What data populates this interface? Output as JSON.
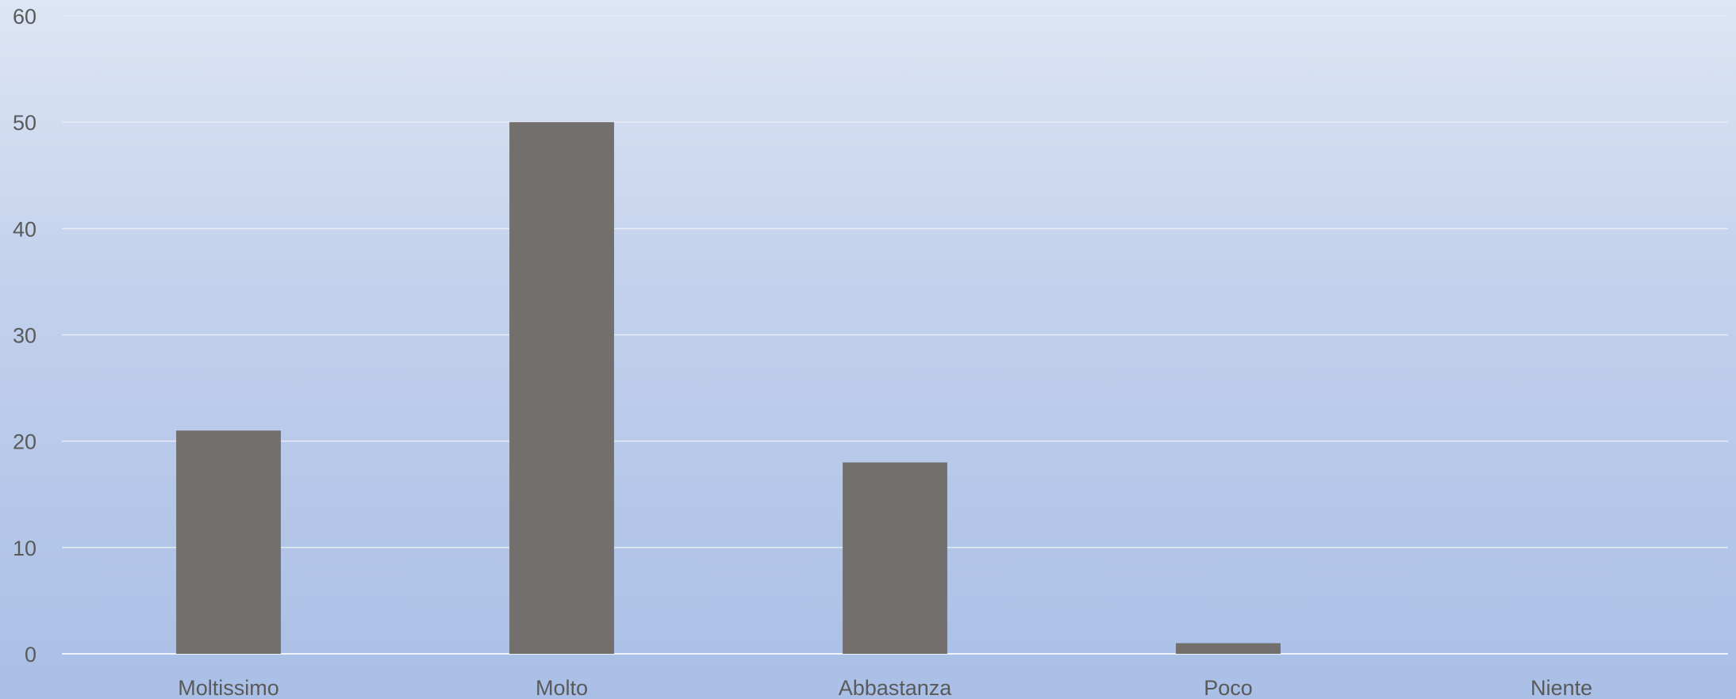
{
  "chart_data": {
    "type": "bar",
    "title": "",
    "xlabel": "",
    "ylabel": "",
    "categories": [
      "Moltissimo",
      "Molto",
      "Abbastanza",
      "Poco",
      "Niente"
    ],
    "values": [
      21,
      50,
      18,
      1,
      0
    ],
    "ylim": [
      0,
      60
    ],
    "yticks": [
      0,
      10,
      20,
      30,
      40,
      50,
      60
    ],
    "grid": true,
    "legend": "none",
    "colors": {
      "bar": "#736f6c",
      "grid": "#e6ecf7",
      "text": "#5a5a5a"
    }
  }
}
